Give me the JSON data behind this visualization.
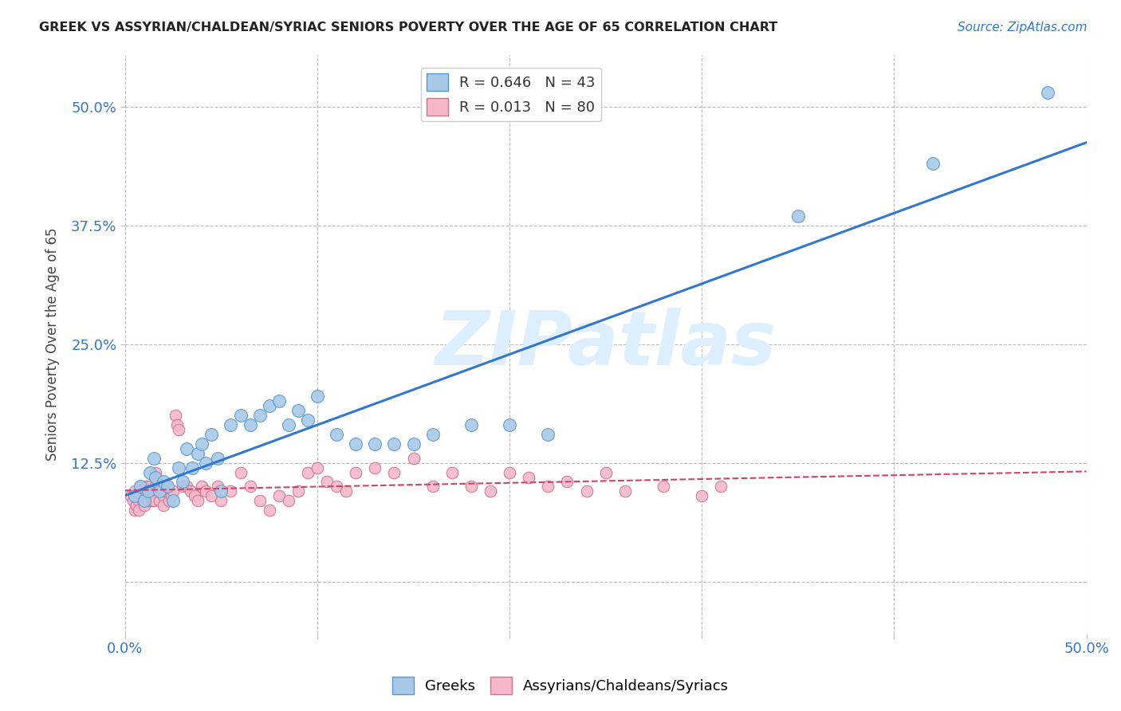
{
  "title": "GREEK VS ASSYRIAN/CHALDEAN/SYRIAC SENIORS POVERTY OVER THE AGE OF 65 CORRELATION CHART",
  "source": "Source: ZipAtlas.com",
  "ylabel": "Seniors Poverty Over the Age of 65",
  "xlim": [
    0,
    0.5
  ],
  "ylim": [
    -0.055,
    0.555
  ],
  "xticks": [
    0.0,
    0.1,
    0.2,
    0.3,
    0.4,
    0.5
  ],
  "xticklabels": [
    "0.0%",
    "",
    "",
    "",
    "",
    "50.0%"
  ],
  "ytick_positions": [
    0.125,
    0.25,
    0.375,
    0.5
  ],
  "ytick_labels": [
    "12.5%",
    "25.0%",
    "37.5%",
    "50.0%"
  ],
  "greek_R": 0.646,
  "greek_N": 43,
  "assyrian_R": 0.013,
  "assyrian_N": 80,
  "blue_dot_color": "#a8c8e8",
  "blue_edge_color": "#5599cc",
  "blue_line_color": "#3377cc",
  "pink_dot_color": "#f4b8c8",
  "pink_edge_color": "#d47090",
  "pink_line_color": "#cc4466",
  "watermark": "ZIPatlas",
  "watermark_color": "#ddeeff",
  "grid_color": "#bbbbbb",
  "background_color": "#ffffff",
  "greek_x": [
    0.005,
    0.008,
    0.01,
    0.012,
    0.013,
    0.015,
    0.016,
    0.018,
    0.02,
    0.022,
    0.025,
    0.028,
    0.03,
    0.032,
    0.035,
    0.038,
    0.04,
    0.042,
    0.045,
    0.048,
    0.05,
    0.055,
    0.06,
    0.065,
    0.07,
    0.075,
    0.08,
    0.085,
    0.09,
    0.095,
    0.1,
    0.11,
    0.12,
    0.13,
    0.14,
    0.15,
    0.16,
    0.18,
    0.2,
    0.22,
    0.35,
    0.42,
    0.48
  ],
  "greek_y": [
    0.09,
    0.1,
    0.085,
    0.095,
    0.115,
    0.13,
    0.11,
    0.095,
    0.105,
    0.1,
    0.085,
    0.12,
    0.105,
    0.14,
    0.12,
    0.135,
    0.145,
    0.125,
    0.155,
    0.13,
    0.095,
    0.165,
    0.175,
    0.165,
    0.175,
    0.185,
    0.19,
    0.165,
    0.18,
    0.17,
    0.195,
    0.155,
    0.145,
    0.145,
    0.145,
    0.145,
    0.155,
    0.165,
    0.165,
    0.155,
    0.385,
    0.44,
    0.515
  ],
  "assyrian_x": [
    0.003,
    0.004,
    0.005,
    0.005,
    0.006,
    0.007,
    0.007,
    0.008,
    0.008,
    0.009,
    0.009,
    0.01,
    0.01,
    0.011,
    0.011,
    0.012,
    0.012,
    0.013,
    0.013,
    0.014,
    0.014,
    0.015,
    0.015,
    0.016,
    0.016,
    0.017,
    0.018,
    0.018,
    0.019,
    0.02,
    0.02,
    0.021,
    0.022,
    0.023,
    0.024,
    0.025,
    0.026,
    0.027,
    0.028,
    0.03,
    0.032,
    0.034,
    0.036,
    0.038,
    0.04,
    0.042,
    0.045,
    0.048,
    0.05,
    0.055,
    0.06,
    0.065,
    0.07,
    0.075,
    0.08,
    0.085,
    0.09,
    0.095,
    0.1,
    0.105,
    0.11,
    0.115,
    0.12,
    0.13,
    0.14,
    0.15,
    0.16,
    0.17,
    0.18,
    0.19,
    0.2,
    0.21,
    0.22,
    0.23,
    0.24,
    0.25,
    0.26,
    0.28,
    0.3,
    0.31
  ],
  "assyrian_y": [
    0.09,
    0.085,
    0.075,
    0.095,
    0.08,
    0.085,
    0.075,
    0.09,
    0.1,
    0.085,
    0.095,
    0.08,
    0.095,
    0.1,
    0.09,
    0.085,
    0.095,
    0.09,
    0.1,
    0.085,
    0.095,
    0.09,
    0.085,
    0.1,
    0.115,
    0.1,
    0.1,
    0.085,
    0.095,
    0.09,
    0.08,
    0.095,
    0.1,
    0.085,
    0.09,
    0.095,
    0.175,
    0.165,
    0.16,
    0.1,
    0.1,
    0.095,
    0.09,
    0.085,
    0.1,
    0.095,
    0.09,
    0.1,
    0.085,
    0.095,
    0.115,
    0.1,
    0.085,
    0.075,
    0.09,
    0.085,
    0.095,
    0.115,
    0.12,
    0.105,
    0.1,
    0.095,
    0.115,
    0.12,
    0.115,
    0.13,
    0.1,
    0.115,
    0.1,
    0.095,
    0.115,
    0.11,
    0.1,
    0.105,
    0.095,
    0.115,
    0.095,
    0.1,
    0.09,
    0.1
  ]
}
